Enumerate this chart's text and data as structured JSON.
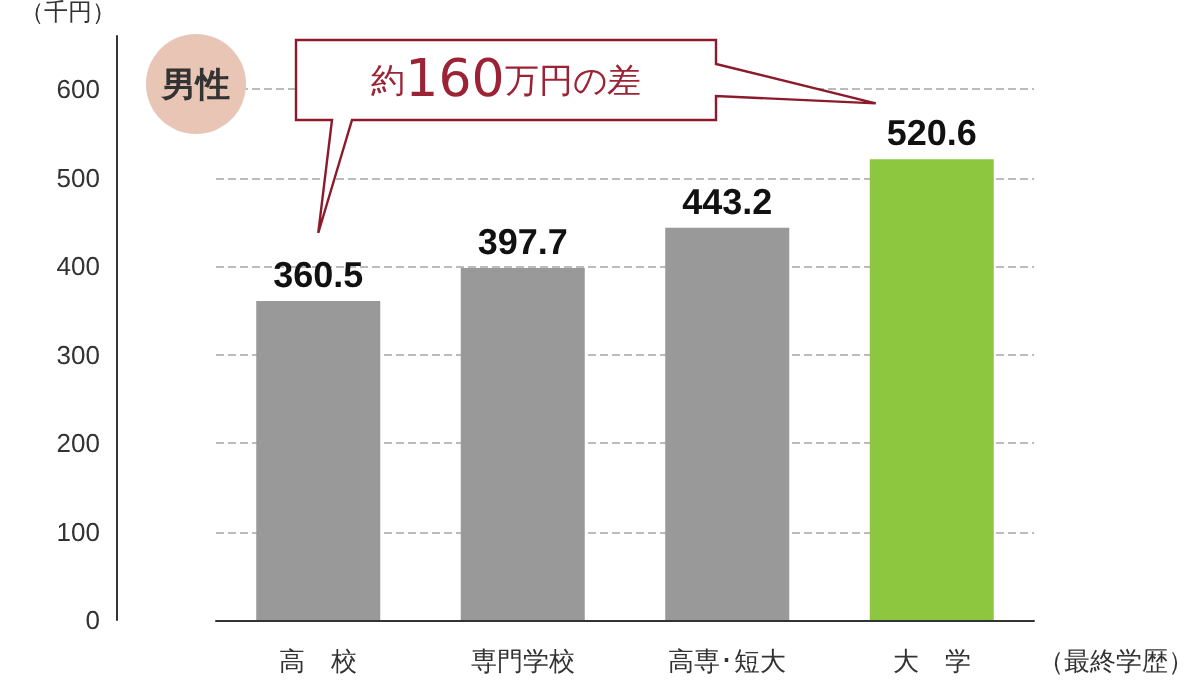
{
  "chart_data": {
    "type": "bar",
    "ylabel": "（千円）",
    "xlabel": "（最終学歴）",
    "categories": [
      "高　校",
      "専門学校",
      "高専･短大",
      "大　学"
    ],
    "values": [
      360.5,
      397.7,
      443.2,
      520.6
    ],
    "colors": [
      "#999999",
      "#999999",
      "#999999",
      "#8dc63f"
    ],
    "ylim": [
      0,
      660
    ],
    "yticks": [
      0,
      100,
      200,
      300,
      400,
      500,
      600
    ],
    "grid": "y",
    "data_labels": true,
    "annotations": [
      "男性",
      "約160万円の差"
    ]
  }
}
